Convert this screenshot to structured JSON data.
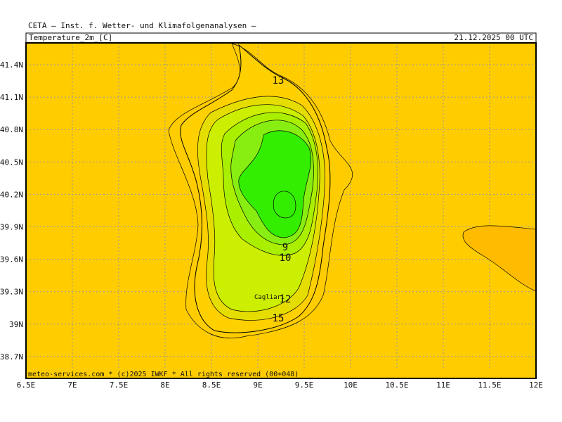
{
  "header": {
    "title": "CETA – Inst. f. Wetter- und Klimafolgenanalysen –",
    "variable": "Temperature_2m_[C]",
    "valid_time": "21.12.2025 00 UTC"
  },
  "footer": "meteo-services.com * (c)2025 IWKF * All rights reserved (00+048)",
  "axes": {
    "x_labels": [
      "6.5E",
      "7E",
      "7.5E",
      "8E",
      "8.5E",
      "9E",
      "9.5E",
      "10E",
      "10.5E",
      "11E",
      "11.5E",
      "12E"
    ],
    "y_labels": [
      "41.4N",
      "41.1N",
      "40.8N",
      "40.5N",
      "40.2N",
      "39.9N",
      "39.6N",
      "39.3N",
      "39N",
      "38.7N"
    ]
  },
  "contour_labels": [
    "13",
    "9",
    "10",
    "12",
    "15"
  ],
  "places": [
    "Cagliari"
  ]
}
